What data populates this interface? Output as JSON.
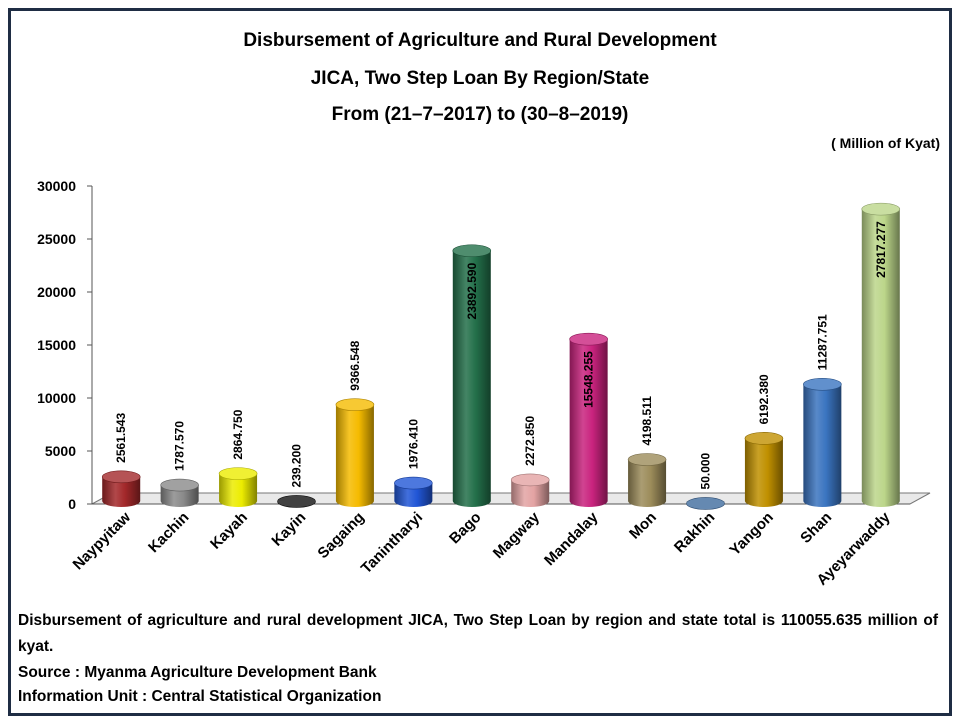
{
  "title_lines": [
    "Disbursement of Agriculture and Rural Development",
    "JICA, Two Step Loan By Region/State",
    "From (21–7–2017) to (30–8–2019)"
  ],
  "unit_label": "( Million of Kyat)",
  "note": "Disbursement of agriculture and rural development JICA, Two Step Loan by region and state total is 110055.635 million of kyat.",
  "source": "Source : Myanma Agriculture Development Bank",
  "info": "Information Unit : Central Statistical Organization",
  "chart_data": {
    "type": "bar",
    "ylim": [
      0,
      30000
    ],
    "yticks": [
      "0",
      "5000",
      "10000",
      "15000",
      "20000",
      "25000",
      "30000"
    ],
    "grid": false,
    "categories": [
      "Naypyitaw",
      "Kachin",
      "Kayah",
      "Kayin",
      "Sagaing",
      "Tanintharyi",
      "Bago",
      "Magway",
      "Mandalay",
      "Mon",
      "Rakhin",
      "Yangon",
      "Shan",
      "Ayeyarwaddy"
    ],
    "values": [
      2561.543,
      1787.57,
      2864.75,
      239.2,
      9366.548,
      1976.41,
      23892.59,
      2272.85,
      15548.255,
      4198.511,
      50.0,
      6192.38,
      11287.751,
      27817.277
    ],
    "value_labels": [
      "2561.543",
      "1787.570",
      "2864.750",
      "239.200",
      "9366.548",
      "1976.410",
      "23892.590",
      "2272.850",
      "15548.255",
      "4198.511",
      "50.000",
      "6192.380",
      "11287.751",
      "27817.277"
    ],
    "colors": [
      "#a3282a",
      "#8a8a8a",
      "#ecec00",
      "#111111",
      "#f5bb00",
      "#2156d6",
      "#23704a",
      "#e3a3a3",
      "#c9237e",
      "#9c8c5a",
      "#3f6b9e",
      "#c09000",
      "#3a74c0",
      "#bcd68a"
    ]
  }
}
